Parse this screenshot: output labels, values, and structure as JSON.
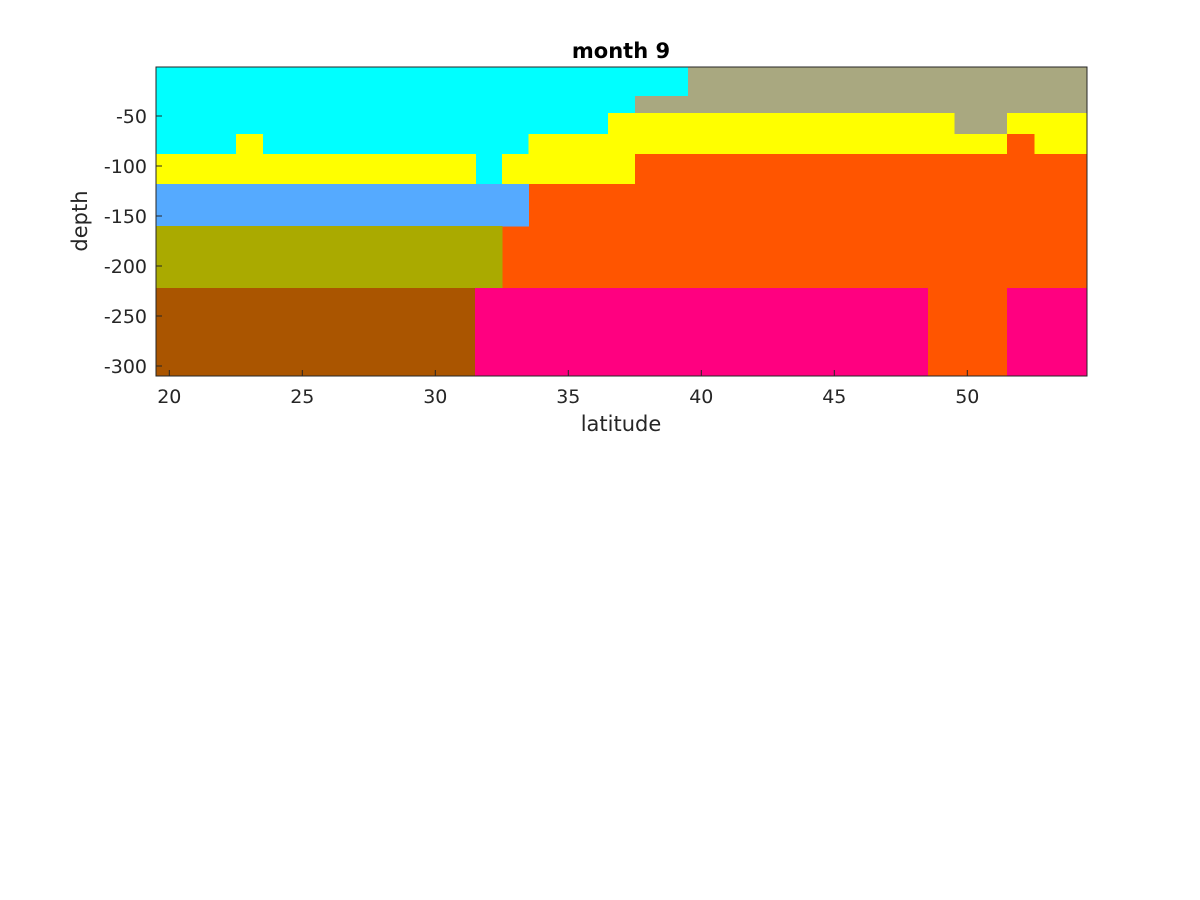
{
  "chart_data": {
    "type": "heatmap",
    "title": "month 9",
    "xlabel": "latitude",
    "ylabel": "depth",
    "xlim": [
      19.5,
      54.5
    ],
    "ylim": [
      -310,
      -1
    ],
    "x_ticks": [
      20,
      25,
      30,
      35,
      40,
      45,
      50
    ],
    "x_tick_labels": [
      "20",
      "25",
      "30",
      "35",
      "40",
      "45",
      "50"
    ],
    "y_ticks": [
      -50,
      -100,
      -150,
      -200,
      -250,
      -300
    ],
    "y_tick_labels": [
      "-50",
      "-100",
      "-150",
      "-200",
      "-250",
      "-300"
    ],
    "grid": false,
    "colors": {
      "cyan": "#00FFFF",
      "khaki_gray": "#A9A880",
      "yellow": "#FFFF00",
      "orange": "#FF5500",
      "blue": "#55AAFF",
      "olive": "#AAAA00",
      "brown": "#AA5500",
      "magenta": "#FF0080"
    },
    "regions": [
      {
        "color": "cyan",
        "lat": [
          19.5,
          39.5
        ],
        "depth": [
          -30,
          -1
        ]
      },
      {
        "color": "cyan",
        "lat": [
          19.5,
          37.5
        ],
        "depth": [
          -47,
          -30
        ]
      },
      {
        "color": "cyan",
        "lat": [
          19.5,
          36.5
        ],
        "depth": [
          -68,
          -47
        ]
      },
      {
        "color": "cyan",
        "lat": [
          19.5,
          33.5
        ],
        "depth": [
          -88,
          -68
        ]
      },
      {
        "color": "cyan",
        "lat": [
          31.5,
          32.5
        ],
        "depth": [
          -118,
          -88
        ]
      },
      {
        "color": "khaki_gray",
        "lat": [
          39.5,
          54.5
        ],
        "depth": [
          -30,
          -1
        ]
      },
      {
        "color": "khaki_gray",
        "lat": [
          37.5,
          54.5
        ],
        "depth": [
          -47,
          -30
        ]
      },
      {
        "color": "khaki_gray",
        "lat": [
          49.5,
          51.5
        ],
        "depth": [
          -68,
          -47
        ]
      },
      {
        "color": "yellow",
        "lat": [
          22.5,
          23.5
        ],
        "depth": [
          -88,
          -68
        ]
      },
      {
        "color": "yellow",
        "lat": [
          36.5,
          49.5
        ],
        "depth": [
          -68,
          -47
        ]
      },
      {
        "color": "yellow",
        "lat": [
          51.5,
          54.5
        ],
        "depth": [
          -68,
          -47
        ]
      },
      {
        "color": "yellow",
        "lat": [
          33.5,
          51.5
        ],
        "depth": [
          -88,
          -68
        ]
      },
      {
        "color": "yellow",
        "lat": [
          52.5,
          54.5
        ],
        "depth": [
          -88,
          -68
        ]
      },
      {
        "color": "yellow",
        "lat": [
          19.5,
          31.5
        ],
        "depth": [
          -118,
          -88
        ]
      },
      {
        "color": "yellow",
        "lat": [
          32.5,
          37.5
        ],
        "depth": [
          -118,
          -88
        ]
      },
      {
        "color": "orange",
        "lat": [
          51.5,
          52.5
        ],
        "depth": [
          -88,
          -68
        ]
      },
      {
        "color": "orange",
        "lat": [
          37.5,
          54.5
        ],
        "depth": [
          -118,
          -88
        ]
      },
      {
        "color": "orange",
        "lat": [
          33.5,
          54.5
        ],
        "depth": [
          -160,
          -118
        ]
      },
      {
        "color": "orange",
        "lat": [
          32.5,
          54.5
        ],
        "depth": [
          -222,
          -160
        ]
      },
      {
        "color": "orange",
        "lat": [
          48.5,
          51.5
        ],
        "depth": [
          -310,
          -222
        ]
      },
      {
        "color": "blue",
        "lat": [
          19.5,
          33.5
        ],
        "depth": [
          -160,
          -118
        ]
      },
      {
        "color": "olive",
        "lat": [
          19.5,
          32.5
        ],
        "depth": [
          -222,
          -160
        ]
      },
      {
        "color": "brown",
        "lat": [
          19.5,
          31.5
        ],
        "depth": [
          -310,
          -222
        ]
      },
      {
        "color": "magenta",
        "lat": [
          31.5,
          48.5
        ],
        "depth": [
          -310,
          -222
        ]
      },
      {
        "color": "magenta",
        "lat": [
          51.5,
          54.5
        ],
        "depth": [
          -310,
          -222
        ]
      }
    ]
  }
}
